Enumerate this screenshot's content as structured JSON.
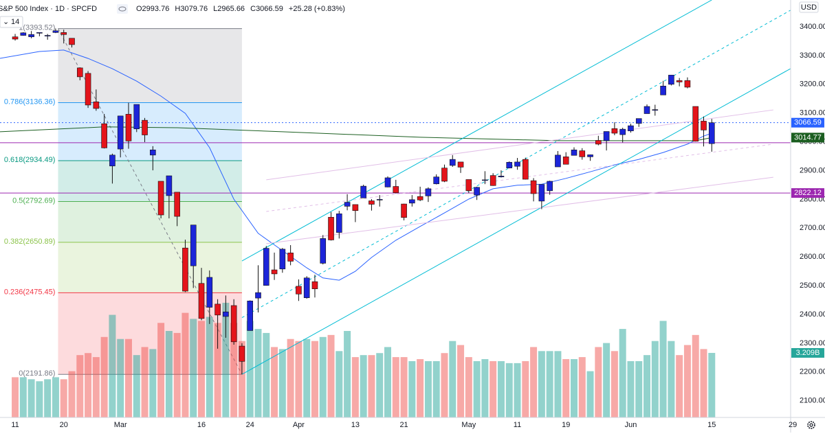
{
  "chart_data": {
    "type": "candlestick",
    "title": "S&P 500 Index · 1D · SPCFD",
    "legend_values": [
      "O2993.76",
      "H3079.76",
      "L2965.66",
      "C3066.59"
    ],
    "change": "+25.28 (+0.83%)",
    "indicator_label": "14",
    "currency": "USD",
    "xlim": [
      -1.87,
      99.98
    ],
    "ylim": [
      2042,
      3493
    ],
    "xticks": [
      {
        "value": 0,
        "label": "11"
      },
      {
        "value": 6,
        "label": "20"
      },
      {
        "value": 13,
        "label": "Mar"
      },
      {
        "value": 23,
        "label": "16"
      },
      {
        "value": 29,
        "label": "24"
      },
      {
        "value": 35,
        "label": "Apr"
      },
      {
        "value": 42,
        "label": "13"
      },
      {
        "value": 48,
        "label": "21"
      },
      {
        "value": 56,
        "label": "May"
      },
      {
        "value": 62,
        "label": "11"
      },
      {
        "value": 68,
        "label": "19"
      },
      {
        "value": 76,
        "label": "Jun"
      },
      {
        "value": 86,
        "label": "15"
      },
      {
        "value": 96,
        "label": "29"
      }
    ],
    "yticks": [
      {
        "value": 2100,
        "label": "2100.00"
      },
      {
        "value": 2200,
        "label": "2200.00"
      },
      {
        "value": 2300,
        "label": "2300.00"
      },
      {
        "value": 2400,
        "label": "2400.00"
      },
      {
        "value": 2500,
        "label": "2500.00"
      },
      {
        "value": 2600,
        "label": "2600.00"
      },
      {
        "value": 2700,
        "label": "2700.00"
      },
      {
        "value": 2800,
        "label": "2800.00"
      },
      {
        "value": 2900,
        "label": "2900.00"
      },
      {
        "value": 3000,
        "label": "3000.00"
      },
      {
        "value": 3100,
        "label": "3100.00"
      },
      {
        "value": 3200,
        "label": "3200.00"
      },
      {
        "value": 3300,
        "label": "3300.00"
      },
      {
        "value": 3400,
        "label": "3400.00"
      }
    ],
    "colors": {
      "up": "#1c25d9",
      "down": "#e4141b",
      "volume_up": "#26a69a",
      "volume_down": "#ef5350",
      "wick": "#111111"
    },
    "ohlc": [
      [
        3365,
        3375,
        3352,
        3357
      ],
      [
        3370,
        3381,
        3369,
        3379
      ],
      [
        3365,
        3385,
        3360,
        3373
      ],
      [
        3378,
        3380,
        3367,
        3380
      ],
      [
        3369,
        3375,
        3355,
        3370
      ],
      [
        3380,
        3394,
        3378,
        3386
      ],
      [
        3380,
        3390,
        3342,
        3373
      ],
      [
        3360,
        3360,
        3328,
        3338
      ],
      [
        3257,
        3259,
        3214,
        3226
      ],
      [
        3238,
        3246,
        3118,
        3128
      ],
      [
        3139,
        3182,
        3108,
        3116
      ],
      [
        3063,
        3097,
        2977,
        2979
      ],
      [
        2916,
        2959,
        2855,
        2954
      ],
      [
        2975,
        3090,
        2946,
        3090
      ],
      [
        3096,
        3136,
        2976,
        3003
      ],
      [
        3045,
        3130,
        3034,
        3130
      ],
      [
        3075,
        3083,
        2999,
        3024
      ],
      [
        2954,
        2985,
        2901,
        2972
      ],
      [
        2863,
        2863,
        2734,
        2746
      ],
      [
        2813,
        2882,
        2734,
        2882
      ],
      [
        2825,
        2825,
        2707,
        2741
      ],
      [
        2631,
        2660,
        2478,
        2481
      ],
      [
        2569,
        2711,
        2492,
        2711
      ],
      [
        2508,
        2562,
        2380,
        2386
      ],
      [
        2425,
        2553,
        2367,
        2529
      ],
      [
        2436,
        2453,
        2281,
        2398
      ],
      [
        2393,
        2466,
        2319,
        2409
      ],
      [
        2431,
        2453,
        2295,
        2305
      ],
      [
        2290,
        2300,
        2192,
        2237
      ],
      [
        2344,
        2449,
        2344,
        2447
      ],
      [
        2457,
        2571,
        2407,
        2476
      ],
      [
        2501,
        2638,
        2500,
        2630
      ],
      [
        2555,
        2615,
        2520,
        2541
      ],
      [
        2558,
        2631,
        2545,
        2627
      ],
      [
        2614,
        2641,
        2571,
        2585
      ],
      [
        2498,
        2522,
        2447,
        2471
      ],
      [
        2458,
        2533,
        2455,
        2527
      ],
      [
        2514,
        2538,
        2459,
        2489
      ],
      [
        2578,
        2676,
        2574,
        2664
      ],
      [
        2738,
        2756,
        2657,
        2659
      ],
      [
        2685,
        2760,
        2664,
        2750
      ],
      [
        2776,
        2818,
        2762,
        2790
      ],
      [
        2782,
        2782,
        2721,
        2761
      ],
      [
        2805,
        2851,
        2805,
        2846
      ],
      [
        2795,
        2801,
        2761,
        2783
      ],
      [
        2799,
        2815,
        2775,
        2800
      ],
      [
        2843,
        2880,
        2842,
        2875
      ],
      [
        2845,
        2868,
        2821,
        2823
      ],
      [
        2784,
        2785,
        2727,
        2737
      ],
      [
        2787,
        2815,
        2775,
        2799
      ],
      [
        2810,
        2844,
        2794,
        2798
      ],
      [
        2812,
        2842,
        2791,
        2837
      ],
      [
        2854,
        2887,
        2852,
        2878
      ],
      [
        2909,
        2921,
        2860,
        2863
      ],
      [
        2918,
        2954,
        2913,
        2939
      ],
      [
        2930,
        2930,
        2892,
        2912
      ],
      [
        2869,
        2869,
        2822,
        2830
      ],
      [
        2815,
        2844,
        2798,
        2842
      ],
      [
        2868,
        2898,
        2853,
        2868
      ],
      [
        2883,
        2891,
        2847,
        2848
      ],
      [
        2878,
        2901,
        2876,
        2881
      ],
      [
        2909,
        2932,
        2908,
        2929
      ],
      [
        2915,
        2944,
        2903,
        2930
      ],
      [
        2939,
        2945,
        2869,
        2870
      ],
      [
        2865,
        2874,
        2793,
        2820
      ],
      [
        2794,
        2852,
        2766,
        2852
      ],
      [
        2830,
        2865,
        2816,
        2863
      ],
      [
        2913,
        2968,
        2913,
        2954
      ],
      [
        2948,
        2964,
        2922,
        2922
      ],
      [
        2953,
        2981,
        2953,
        2972
      ],
      [
        2969,
        2978,
        2938,
        2948
      ],
      [
        2948,
        2956,
        2934,
        2955
      ],
      [
        3005,
        3021,
        2988,
        2992
      ],
      [
        3004,
        3036,
        2970,
        3036
      ],
      [
        3046,
        3068,
        3023,
        3030
      ],
      [
        3025,
        3049,
        2998,
        3044
      ],
      [
        3038,
        3063,
        3032,
        3056
      ],
      [
        3064,
        3081,
        3052,
        3081
      ],
      [
        3098,
        3130,
        3098,
        3123
      ],
      [
        3111,
        3129,
        3091,
        3112
      ],
      [
        3163,
        3212,
        3163,
        3194
      ],
      [
        3200,
        3232,
        3196,
        3232
      ],
      [
        3213,
        3222,
        3193,
        3208
      ],
      [
        3213,
        3224,
        3186,
        3190
      ],
      [
        3123,
        3123,
        3001,
        3002
      ],
      [
        3072,
        3088,
        2984,
        3041
      ],
      [
        2993.76,
        3079.76,
        2965.66,
        3066.59
      ]
    ],
    "volume": {
      "ylim": [
        0,
        20.75
      ],
      "tag_label": "3.209B",
      "values": [
        2.0,
        2.0,
        1.9,
        1.8,
        1.9,
        2.0,
        1.9,
        2.3,
        3.1,
        3.2,
        3.0,
        4.0,
        5.1,
        3.9,
        3.9,
        3.1,
        3.5,
        3.4,
        4.7,
        4.3,
        4.2,
        5.2,
        4.9,
        4.8,
        5.0,
        4.7,
        5.7,
        4.7,
        3.8,
        4.8,
        4.4,
        4.2,
        3.5,
        3.4,
        3.9,
        3.8,
        3.9,
        3.8,
        4.0,
        4.1,
        3.3,
        4.3,
        3.0,
        3.1,
        3.1,
        3.2,
        3.5,
        3.0,
        3.0,
        2.8,
        2.9,
        2.8,
        2.8,
        3.2,
        3.8,
        3.6,
        3.0,
        2.8,
        2.9,
        2.8,
        2.8,
        2.7,
        2.7,
        2.8,
        3.5,
        3.3,
        3.3,
        3.3,
        2.9,
        2.9,
        3.0,
        2.3,
        3.5,
        3.7,
        3.3,
        4.4,
        2.8,
        2.8,
        3.1,
        3.8,
        4.8,
        3.8,
        3.1,
        3.6,
        4.1,
        3.4,
        3.209
      ]
    },
    "fib": {
      "start_index": 5.3,
      "end_index": 28,
      "levels": [
        {
          "price": 3393.52,
          "label": "1(3393.52)",
          "color": "#787b86"
        },
        {
          "price": 3136.36,
          "label": "0.786(3136.36)",
          "color": "#2196f3"
        },
        {
          "price": 2934.49,
          "label": "0.618(2934.49)",
          "color": "#089981"
        },
        {
          "price": 2792.69,
          "label": "0.5(2792.69)",
          "color": "#4caf50"
        },
        {
          "price": 2650.89,
          "label": "0.382(2650.89)",
          "color": "#8bc34a"
        },
        {
          "price": 2475.45,
          "label": "0.236(2475.45)",
          "color": "#f23645"
        },
        {
          "price": 2191.86,
          "label": "0(2191.86)",
          "color": "#787b86"
        }
      ]
    },
    "hlines": [
      {
        "value": 3066.59,
        "color": "#2962ff",
        "dash": "2 3",
        "tagged": true
      },
      {
        "value": 2997,
        "color": "#9c27b0",
        "dash": "none",
        "tagged": false
      },
      {
        "value": 2822.12,
        "color": "#9c27b0",
        "dash": "none",
        "tagged": true
      }
    ],
    "moving_averages": [
      {
        "color": "#2962ff",
        "tagged": false,
        "x": [
          -1.9,
          3,
          6,
          9,
          12,
          15,
          18,
          21,
          24,
          27,
          30,
          33,
          36,
          38,
          40,
          42,
          44,
          47,
          50,
          53,
          56,
          59,
          62,
          65,
          68,
          71,
          74,
          77,
          80,
          83,
          85,
          86
        ],
        "values": [
          3290,
          3314,
          3319,
          3290,
          3254,
          3211,
          3159,
          3099,
          2980,
          2801,
          2682,
          2622,
          2562,
          2527,
          2519,
          2550,
          2598,
          2658,
          2706,
          2753,
          2801,
          2837,
          2849,
          2853,
          2873,
          2896,
          2920,
          2939,
          2963,
          2992,
          3020,
          3030
        ]
      },
      {
        "color": "#1b5e20",
        "tagged": true,
        "x": [
          -1.9,
          11,
          20,
          33,
          50,
          67,
          84,
          86
        ],
        "values": [
          3035,
          3052,
          3049,
          3035,
          3016,
          3004,
          3004,
          3014.77
        ]
      }
    ],
    "trendlines": [
      {
        "points": [
          [
            28,
            2586
          ],
          [
            86,
            3493
          ]
        ],
        "color": "#00bcd4",
        "dash": "none"
      },
      {
        "points": [
          [
            28,
            2389
          ],
          [
            95.7,
            3457
          ]
        ],
        "color": "#00bcd4",
        "dash": "4 4"
      },
      {
        "points": [
          [
            28,
            2192
          ],
          [
            95.7,
            3254
          ]
        ],
        "color": "#00bcd4",
        "dash": "none"
      },
      {
        "points": [
          [
            31,
            2868
          ],
          [
            93.6,
            3111
          ]
        ],
        "color": "#e1bee7",
        "dash": "none"
      },
      {
        "points": [
          [
            31,
            2758
          ],
          [
            93.6,
            2992
          ]
        ],
        "color": "#e1bee7",
        "dash": "4 4"
      },
      {
        "points": [
          [
            31,
            2646
          ],
          [
            93.6,
            2877
          ]
        ],
        "color": "#e1bee7",
        "dash": "none"
      }
    ]
  }
}
